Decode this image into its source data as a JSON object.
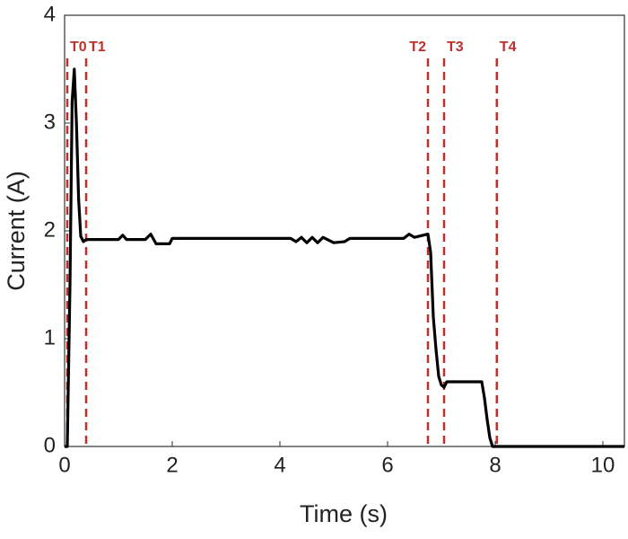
{
  "chart_data": {
    "type": "line",
    "xlabel": "Time (s)",
    "ylabel": "Current (A)",
    "xlim": [
      0,
      10.4
    ],
    "ylim": [
      0,
      4
    ],
    "xticks": [
      0,
      2,
      4,
      6,
      8,
      10
    ],
    "yticks": [
      0,
      1,
      2,
      3,
      4
    ],
    "grid": false,
    "series": [
      {
        "color": "#000000",
        "x": [
          0,
          0.05,
          0.1,
          0.14,
          0.18,
          0.22,
          0.26,
          0.3,
          0.35,
          0.4,
          0.6,
          1.0,
          1.08,
          1.15,
          1.5,
          1.6,
          1.7,
          1.95,
          2.0,
          4.2,
          4.3,
          4.4,
          4.5,
          4.6,
          4.7,
          4.8,
          5.0,
          5.2,
          5.3,
          6.3,
          6.4,
          6.5,
          6.75,
          6.8,
          6.85,
          6.9,
          6.95,
          7.0,
          7.05,
          7.1,
          7.75,
          7.8,
          7.85,
          7.9,
          7.95,
          8.5,
          10.4
        ],
        "values": [
          0,
          0,
          1.5,
          3.2,
          3.5,
          3.0,
          2.3,
          1.95,
          1.9,
          1.92,
          1.92,
          1.92,
          1.96,
          1.92,
          1.92,
          1.97,
          1.88,
          1.88,
          1.93,
          1.93,
          1.9,
          1.94,
          1.89,
          1.94,
          1.89,
          1.94,
          1.89,
          1.9,
          1.93,
          1.93,
          1.97,
          1.94,
          1.97,
          1.8,
          1.2,
          0.9,
          0.65,
          0.57,
          0.55,
          0.6,
          0.6,
          0.45,
          0.25,
          0.08,
          0,
          0,
          0
        ]
      }
    ],
    "markers": [
      {
        "x": 0.05,
        "label": "T0",
        "side": "right"
      },
      {
        "x": 0.4,
        "label": "T1",
        "side": "right"
      },
      {
        "x": 6.75,
        "label": "T2",
        "side": "left"
      },
      {
        "x": 7.05,
        "label": "T3",
        "side": "right"
      },
      {
        "x": 8.03,
        "label": "T4",
        "side": "right"
      }
    ],
    "marker_color": "#c0302b"
  }
}
